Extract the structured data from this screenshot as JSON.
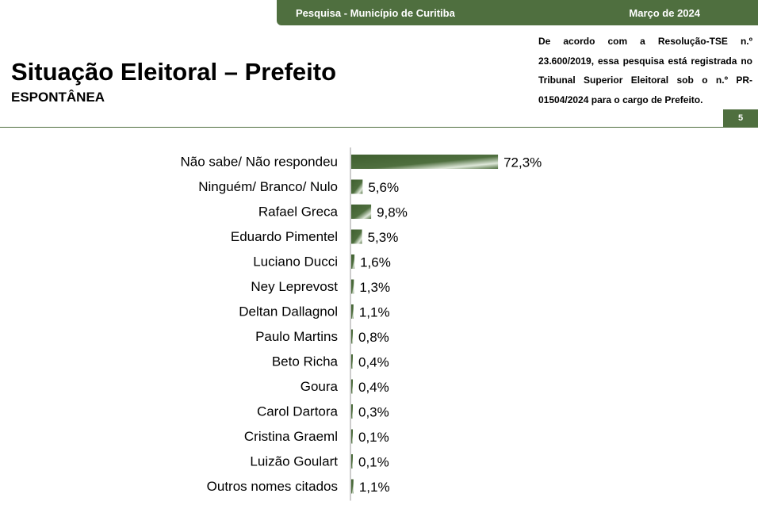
{
  "header": {
    "survey_label": "Pesquisa - Município de Curitiba",
    "date_label": "Março de 2024",
    "title": "Situação Eleitoral – Prefeito",
    "subtitle": "ESPONTÂNEA",
    "legal_text": "De acordo com a Resolução-TSE n.º 23.600/2019, essa pesquisa está registrada no Tribunal Superior Eleitoral sob o n.º PR-01504/2024 para o cargo de Prefeito.",
    "page_number": "5"
  },
  "colors": {
    "accent": "#4f6f3f",
    "bar_dark": "#3f5f2f",
    "bar_light": "#dfe8da"
  },
  "chart_data": {
    "type": "bar",
    "orientation": "horizontal",
    "categories": [
      "Não sabe/ Não respondeu",
      "Ninguém/ Branco/ Nulo",
      "Rafael Greca",
      "Eduardo Pimentel",
      "Luciano Ducci",
      "Ney Leprevost",
      "Deltan Dallagnol",
      "Paulo Martins",
      "Beto Richa",
      "Goura",
      "Carol Dartora",
      "Cristina Graeml",
      "Luizão Goulart",
      "Outros nomes citados"
    ],
    "values": [
      72.3,
      5.6,
      9.8,
      5.3,
      1.6,
      1.3,
      1.1,
      0.8,
      0.4,
      0.4,
      0.3,
      0.1,
      0.1,
      1.1
    ],
    "value_labels": [
      "72,3%",
      "5,6%",
      "9,8%",
      "5,3%",
      "1,6%",
      "1,3%",
      "1,1%",
      "0,8%",
      "0,4%",
      "0,4%",
      "0,3%",
      "0,1%",
      "0,1%",
      "1,1%"
    ],
    "unit": "%",
    "xlim": [
      0,
      100
    ],
    "grid": false,
    "legend": "none"
  }
}
